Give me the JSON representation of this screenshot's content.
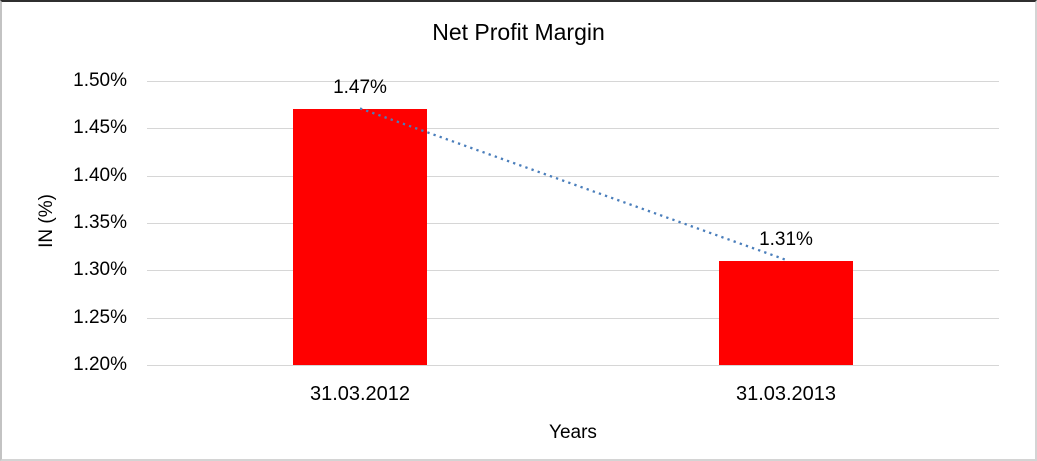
{
  "chart_data": {
    "type": "bar",
    "title": "Net Profit Margin",
    "xlabel": "Years",
    "ylabel": "IN (%)",
    "categories": [
      "31.03.2012",
      "31.03.2013"
    ],
    "series": [
      {
        "name": "Net Profit Margin",
        "values": [
          1.47,
          1.31
        ],
        "labels": [
          "1.47%",
          "1.31%"
        ]
      }
    ],
    "ylim": [
      1.2,
      1.5
    ],
    "yticks": [
      {
        "value": 1.5,
        "label": "1.50%"
      },
      {
        "value": 1.45,
        "label": "1.45%"
      },
      {
        "value": 1.4,
        "label": "1.40%"
      },
      {
        "value": 1.35,
        "label": "1.35%"
      },
      {
        "value": 1.3,
        "label": "1.30%"
      },
      {
        "value": 1.25,
        "label": "1.25%"
      },
      {
        "value": 1.2,
        "label": "1.20%"
      }
    ],
    "grid": true,
    "legend": "none",
    "colors": {
      "bar": "#ff0000",
      "trendline": "#4a7ebb",
      "gridline": "#d6d6d6",
      "text": "#000000",
      "background": "#ffffff"
    },
    "trendline": {
      "style": "dotted",
      "connects": "bar tops"
    }
  }
}
